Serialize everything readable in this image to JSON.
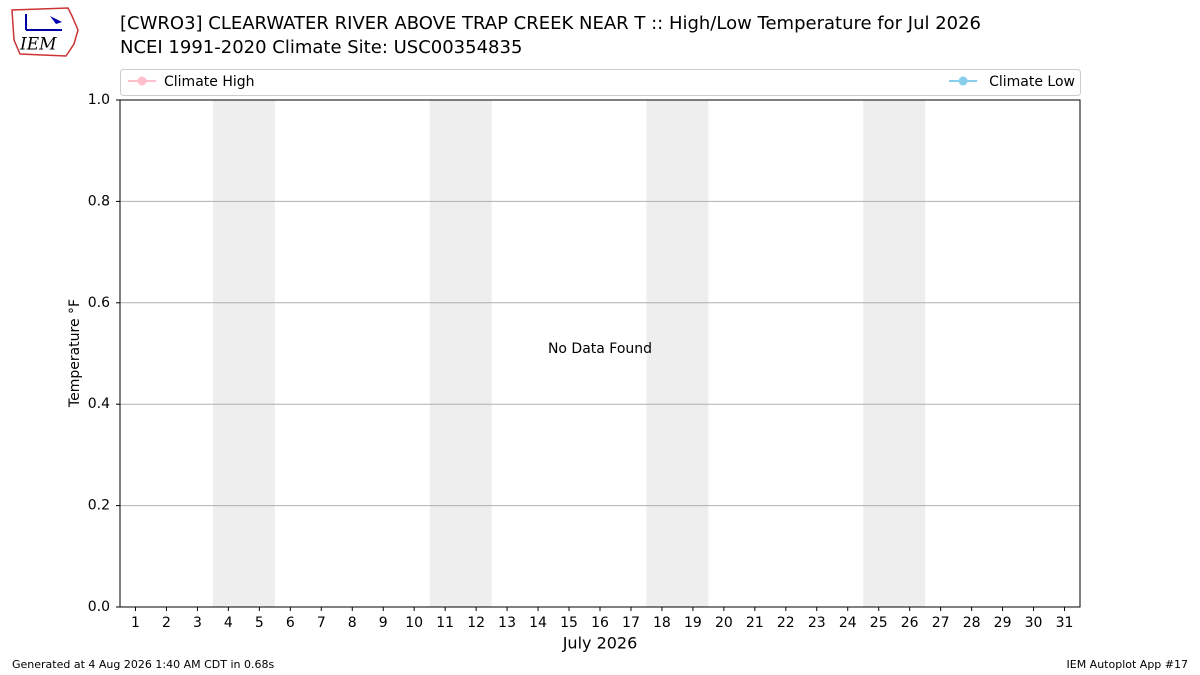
{
  "logo": "IEM",
  "footer_left": "Generated at 4 Aug 2026 1:40 AM CDT in 0.68s",
  "footer_right": "IEM Autoplot App #17",
  "chart_data": {
    "type": "line",
    "title": "[CWRO3] CLEARWATER RIVER ABOVE TRAP CREEK NEAR T :: High/Low Temperature for Jul 2026",
    "subtitle": "NCEI 1991-2020 Climate Site: USC00354835",
    "ylabel": "Temperature °F",
    "xlabel": "July 2026",
    "annotation": "No Data Found",
    "categories": [
      "1",
      "2",
      "3",
      "4",
      "5",
      "6",
      "7",
      "8",
      "9",
      "10",
      "11",
      "12",
      "13",
      "14",
      "15",
      "16",
      "17",
      "18",
      "19",
      "20",
      "21",
      "22",
      "23",
      "24",
      "25",
      "26",
      "27",
      "28",
      "29",
      "30",
      "31"
    ],
    "shaded_categories": [
      [
        3,
        4
      ],
      [
        10,
        11
      ],
      [
        17,
        18
      ],
      [
        24,
        25
      ]
    ],
    "series": [
      {
        "name": "Climate High",
        "color": "#ffc0cb",
        "values": [
          null,
          null,
          null,
          null,
          null,
          null,
          null,
          null,
          null,
          null,
          null,
          null,
          null,
          null,
          null,
          null,
          null,
          null,
          null,
          null,
          null,
          null,
          null,
          null,
          null,
          null,
          null,
          null,
          null,
          null,
          null
        ]
      },
      {
        "name": "Climate Low",
        "color": "#87ceeb",
        "values": [
          null,
          null,
          null,
          null,
          null,
          null,
          null,
          null,
          null,
          null,
          null,
          null,
          null,
          null,
          null,
          null,
          null,
          null,
          null,
          null,
          null,
          null,
          null,
          null,
          null,
          null,
          null,
          null,
          null,
          null,
          null
        ]
      }
    ],
    "ylim": [
      0,
      1
    ],
    "yticks": [
      {
        "value": 0,
        "label": "0.0"
      },
      {
        "value": 0.2,
        "label": "0.2"
      },
      {
        "value": 0.4,
        "label": "0.4"
      },
      {
        "value": 0.6,
        "label": "0.6"
      },
      {
        "value": 0.8,
        "label": "0.8"
      },
      {
        "value": 1,
        "label": "1.0"
      }
    ],
    "grid": true,
    "legend": "top"
  }
}
